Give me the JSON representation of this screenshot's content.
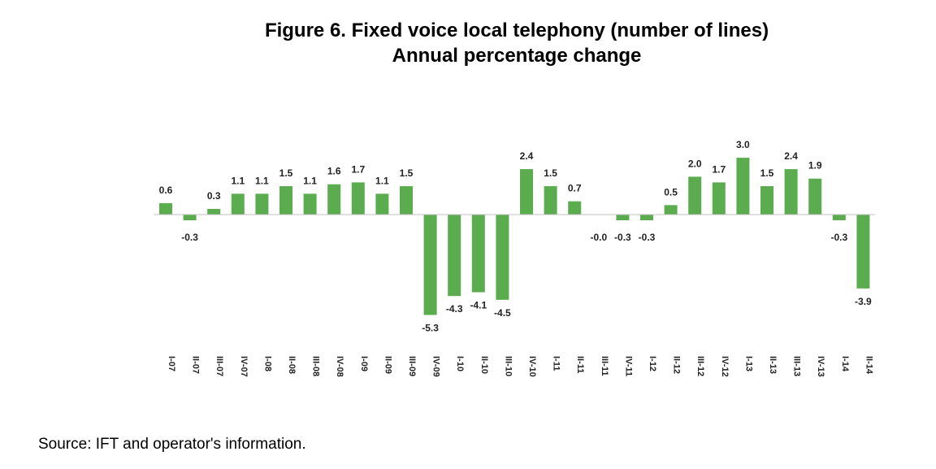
{
  "chart_data": {
    "type": "bar",
    "title": "Figure 6. Fixed voice local telephony (number of lines)",
    "subtitle": "Annual percentage change",
    "categories": [
      "I-07",
      "II-07",
      "III-07",
      "IV-07",
      "I-08",
      "II-08",
      "III-08",
      "IV-08",
      "I-09",
      "II-09",
      "III-09",
      "IV-09",
      "I-10",
      "II-10",
      "III-10",
      "IV-10",
      "I-11",
      "II-11",
      "III-11",
      "IV-11",
      "I-12",
      "II-12",
      "III-12",
      "IV-12",
      "I-13",
      "II-13",
      "III-13",
      "IV-13",
      "I-14",
      "II-14"
    ],
    "values": [
      0.6,
      -0.3,
      0.3,
      1.1,
      1.1,
      1.5,
      1.1,
      1.6,
      1.7,
      1.1,
      1.5,
      -5.3,
      -4.3,
      -4.1,
      -4.5,
      2.4,
      1.5,
      0.7,
      -0.0,
      -0.3,
      -0.3,
      0.5,
      2.0,
      1.7,
      3.0,
      1.5,
      2.4,
      1.9,
      -0.3,
      -3.9
    ],
    "labels": [
      "0.6",
      "-0.3",
      "0.3",
      "1.1",
      "1.1",
      "1.5",
      "1.1",
      "1.6",
      "1.7",
      "1.1",
      "1.5",
      "-5.3",
      "-4.3",
      "-4.1",
      "-4.5",
      "2.4",
      "1.5",
      "0.7",
      "-0.0",
      "-0.3",
      "-0.3",
      "0.5",
      "2.0",
      "1.7",
      "3.0",
      "1.5",
      "2.4",
      "1.9",
      "-0.3",
      "-3.9"
    ],
    "bar_color": "#5aac4e",
    "xlabel": "",
    "ylabel": "",
    "grid": false,
    "legend": "none"
  },
  "source": "Source: IFT and operator's information."
}
